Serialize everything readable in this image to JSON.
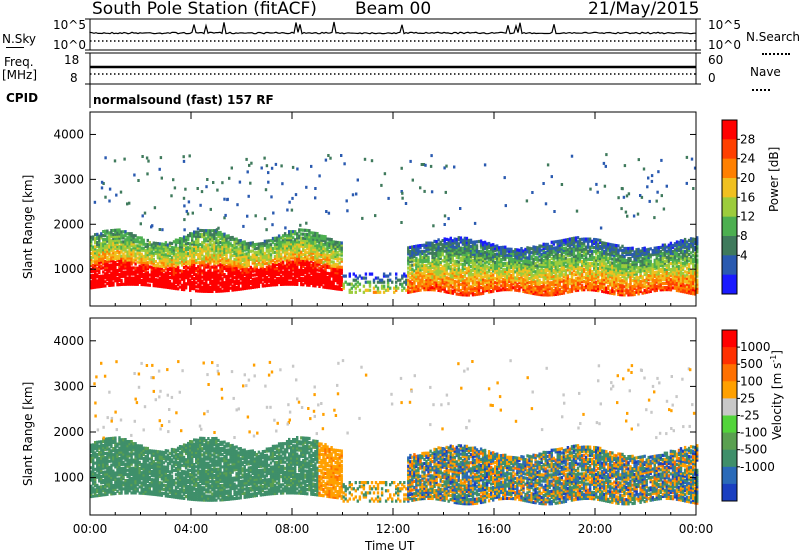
{
  "header": {
    "station": "South Pole Station (fitACF)",
    "beam": "Beam 00",
    "date": "21/May/2015"
  },
  "top_panels": {
    "nsky_label": "N.Sky",
    "nsearch_label": "N.Search",
    "freq_label_1": "Freq.",
    "freq_label_2": "[MHz]",
    "nave_label": "Nave",
    "cpid_label": "CPID",
    "cpid_value": "normalsound (fast) 157 RF",
    "noise_ticks_left": [
      "10^5",
      "10^0"
    ],
    "noise_ticks_right": [
      "10^5",
      "10^0"
    ],
    "freq_ticks": [
      "18",
      "8"
    ],
    "nave_ticks": [
      "60",
      "0"
    ]
  },
  "chart_data": [
    {
      "type": "heatmap",
      "title": "",
      "ylabel": "Slant Range [km]",
      "xlabel": "",
      "ylim": [
        180,
        4500
      ],
      "xlim": [
        0,
        24
      ],
      "y_ticks": [
        "4000",
        "3000",
        "2000",
        "1000"
      ],
      "y_tick_values": [
        4000,
        3000,
        2000,
        1000
      ],
      "x_ticks": [
        "00:00",
        "04:00",
        "08:00",
        "12:00",
        "16:00",
        "20:00",
        "00:00"
      ],
      "x_tick_values": [
        0,
        4,
        8,
        12,
        16,
        20,
        24
      ],
      "colorbar": {
        "label": "Power [dB]",
        "ticks": [
          "28",
          "24",
          "20",
          "16",
          "12",
          "8",
          "4"
        ],
        "tick_values": [
          28,
          24,
          20,
          16,
          12,
          8,
          4
        ],
        "range": [
          0,
          30
        ],
        "colors": [
          "#1a1aff",
          "#2a5ab0",
          "#3f7a5c",
          "#4caf50",
          "#9ccc3c",
          "#f0c020",
          "#ff8000",
          "#ff4000",
          "#ff0000"
        ]
      },
      "regions": [
        {
          "t0": 0.0,
          "t1": 10.0,
          "r0": 500,
          "r1": 1800,
          "level": "strong"
        },
        {
          "t0": 10.0,
          "t1": 12.5,
          "r0": 400,
          "r1": 1000,
          "level": "weak"
        },
        {
          "t0": 12.5,
          "t1": 24.0,
          "r0": 400,
          "r1": 1600,
          "level": "medium"
        }
      ]
    },
    {
      "type": "heatmap",
      "title": "",
      "ylabel": "Slant Range [km]",
      "xlabel": "Time UT",
      "ylim": [
        180,
        4500
      ],
      "xlim": [
        0,
        24
      ],
      "y_ticks": [
        "4000",
        "3000",
        "2000",
        "1000"
      ],
      "y_tick_values": [
        4000,
        3000,
        2000,
        1000
      ],
      "x_ticks": [
        "00:00",
        "04:00",
        "08:00",
        "12:00",
        "16:00",
        "20:00",
        "00:00"
      ],
      "x_tick_values": [
        0,
        4,
        8,
        12,
        16,
        20,
        24
      ],
      "colorbar": {
        "label": "Velocity [m s^-1]",
        "ticks": [
          "1000",
          "500",
          "100",
          "25",
          "-25",
          "-100",
          "-500",
          "-1000"
        ],
        "tick_values": [
          1000,
          500,
          100,
          25,
          -25,
          -100,
          -500,
          -1000
        ],
        "colors": [
          "#1a3fc0",
          "#2a6ab8",
          "#3f8f6a",
          "#5aa050",
          "#52d43a",
          "#c8c8c8",
          "#ffa000",
          "#ff7000",
          "#ff3000",
          "#ff0000"
        ]
      },
      "regions": [
        {
          "t0": 0.0,
          "t1": 9.0,
          "r0": 600,
          "r1": 1700,
          "level": "green"
        },
        {
          "t0": 9.0,
          "t1": 10.0,
          "r0": 700,
          "r1": 1600,
          "level": "orange"
        },
        {
          "t0": 12.5,
          "t1": 24.0,
          "r0": 500,
          "r1": 1500,
          "level": "mixed"
        }
      ]
    }
  ]
}
